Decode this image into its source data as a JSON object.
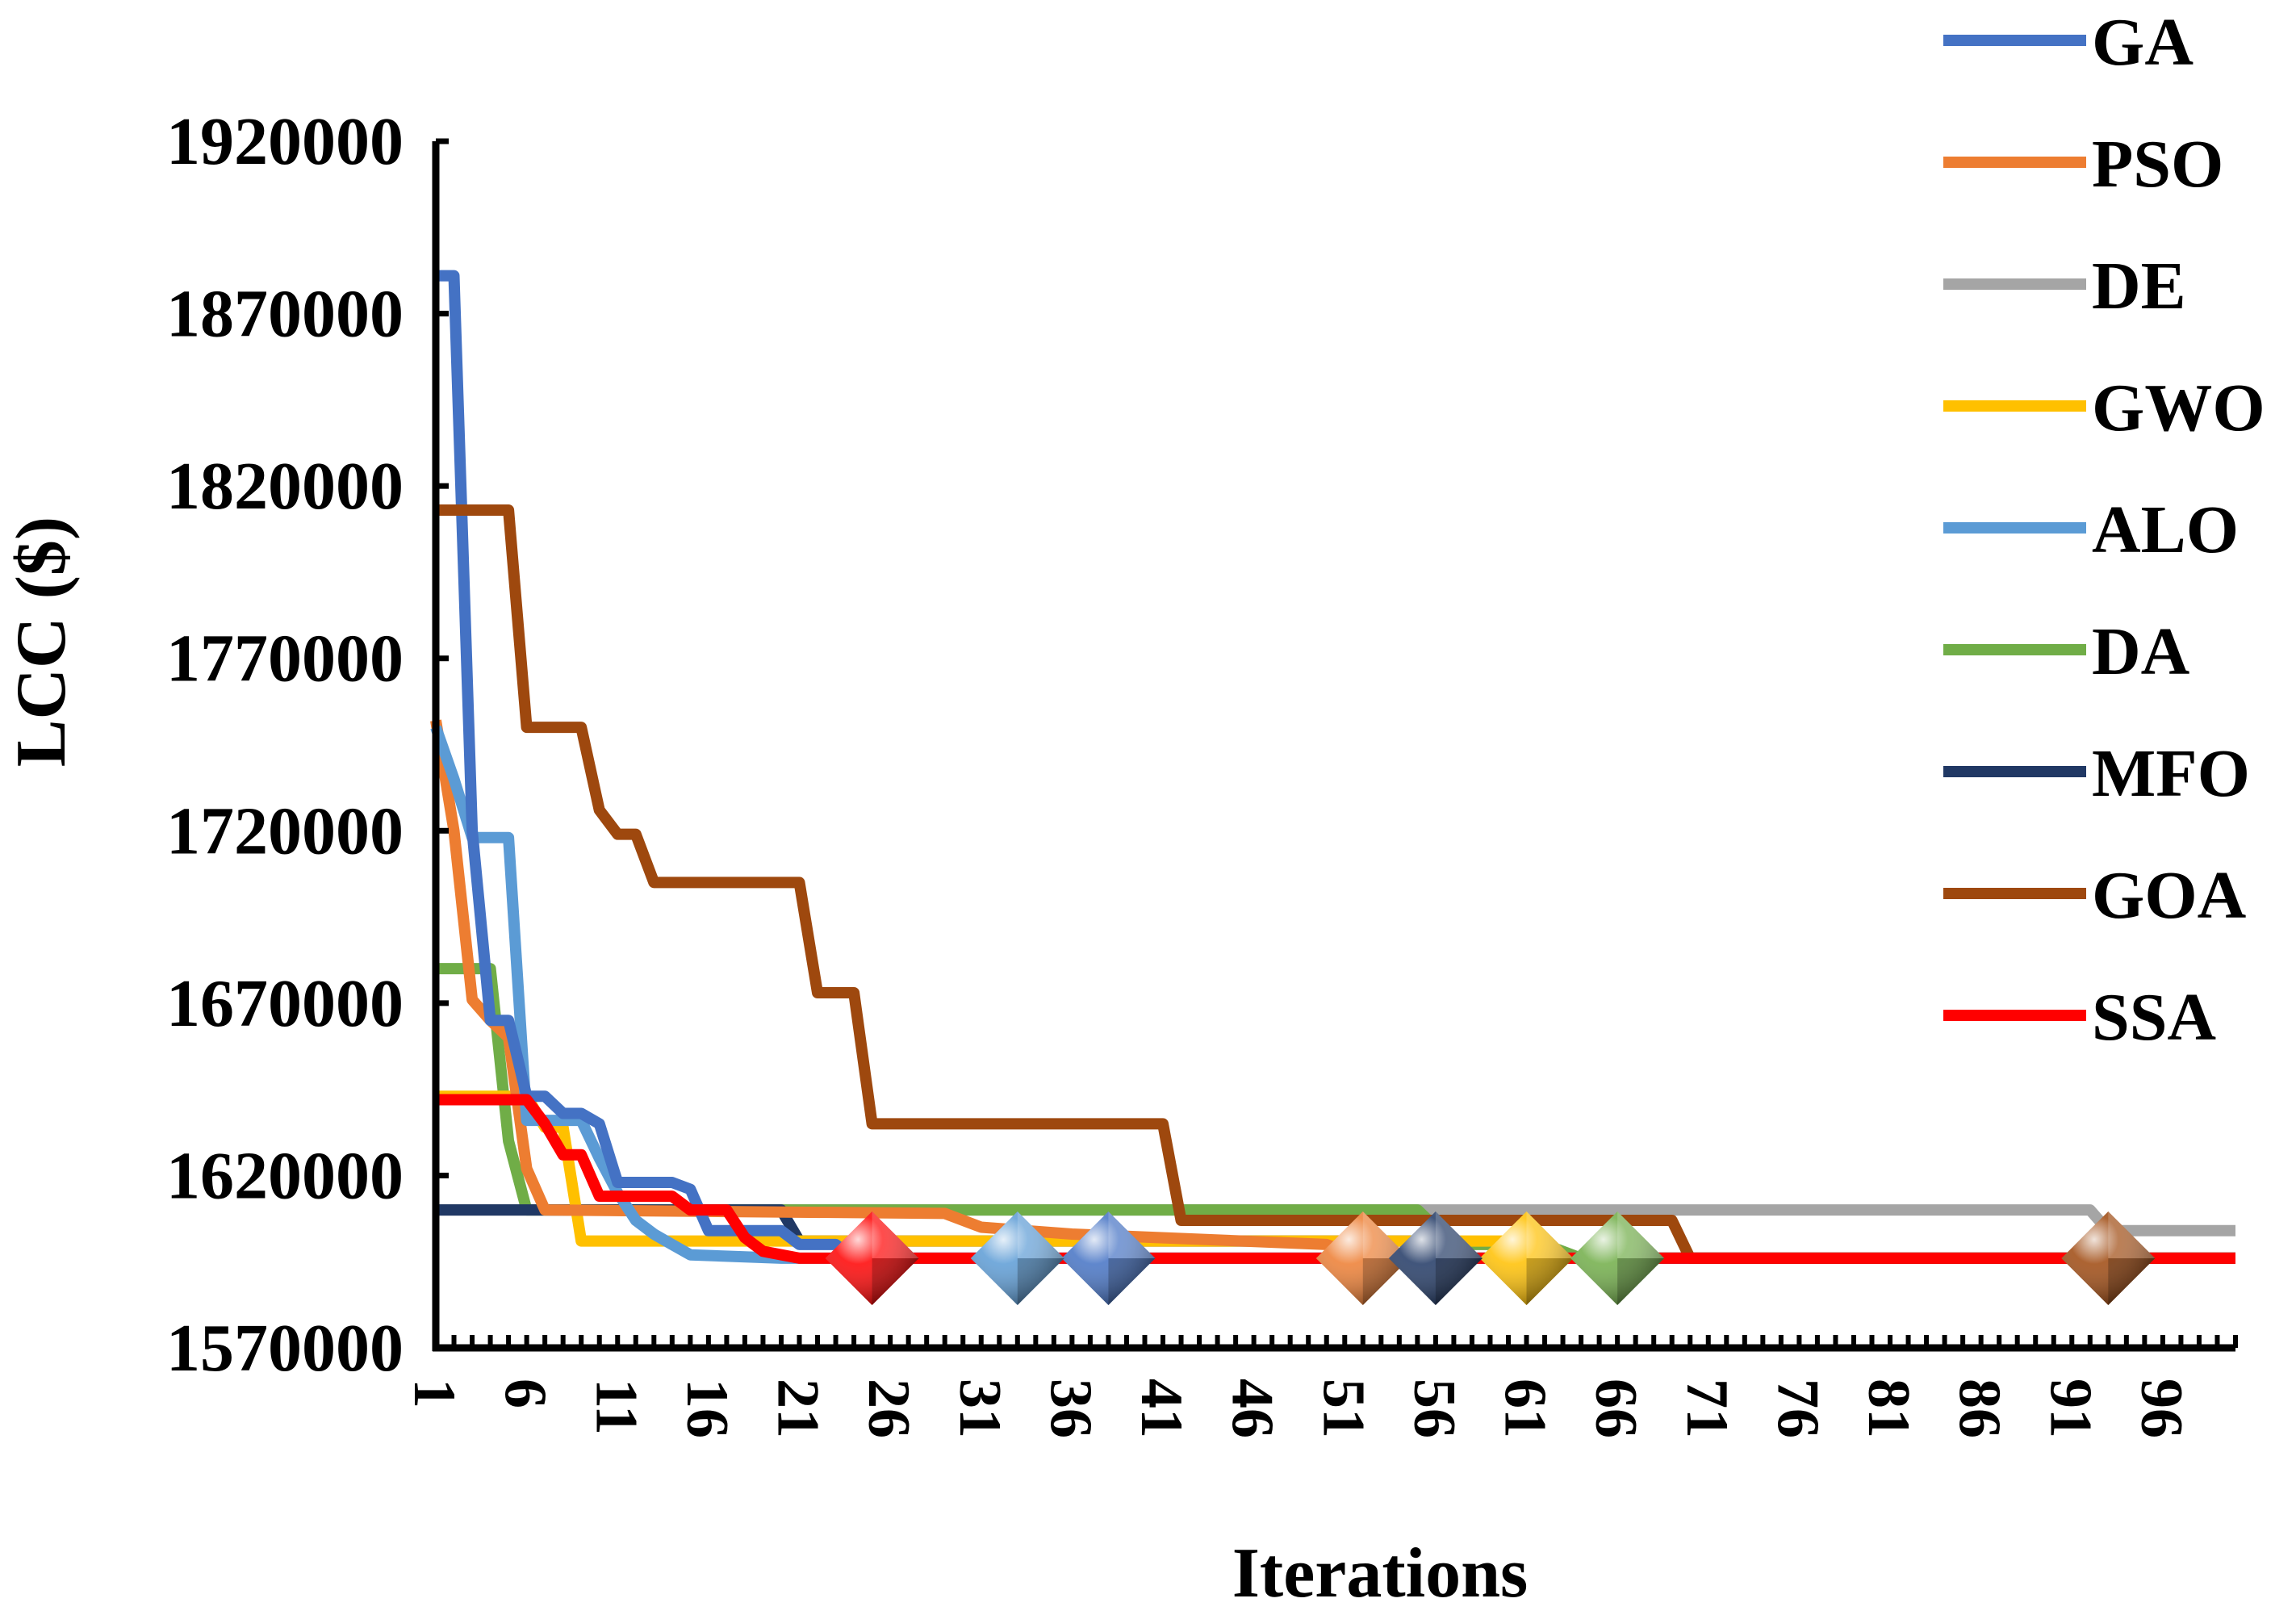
{
  "chart_data": {
    "type": "line",
    "xlabel": "Iterations",
    "ylabel": "LCC ($)",
    "ylim": [
      1570000,
      1920000
    ],
    "xlim": [
      1,
      100
    ],
    "y_ticks": [
      "1570000",
      "1620000",
      "1670000",
      "1720000",
      "1770000",
      "1820000",
      "1870000",
      "1920000"
    ],
    "x_ticks": [
      "1",
      "6",
      "11",
      "16",
      "21",
      "26",
      "31",
      "36",
      "41",
      "46",
      "51",
      "56",
      "61",
      "66",
      "71",
      "76",
      "81",
      "86",
      "91",
      "96"
    ],
    "legend_position": "top-right",
    "series": [
      {
        "name": "GA",
        "color": "#4472C4",
        "points": [
          [
            1,
            1881000
          ],
          [
            2,
            1881000
          ],
          [
            3,
            1720000
          ],
          [
            4,
            1665000
          ],
          [
            5,
            1665000
          ],
          [
            6,
            1643000
          ],
          [
            7,
            1643000
          ],
          [
            8,
            1638000
          ],
          [
            9,
            1638000
          ],
          [
            10,
            1635000
          ],
          [
            11,
            1618000
          ],
          [
            14,
            1618000
          ],
          [
            15,
            1616000
          ],
          [
            16,
            1604000
          ],
          [
            20,
            1604000
          ],
          [
            21,
            1600000
          ],
          [
            23,
            1600000
          ],
          [
            24,
            1596000
          ],
          [
            100,
            1596000
          ]
        ],
        "marker_x": 38
      },
      {
        "name": "PSO",
        "color": "#ED7D31",
        "points": [
          [
            1,
            1752000
          ],
          [
            2,
            1720000
          ],
          [
            3,
            1671000
          ],
          [
            4,
            1665000
          ],
          [
            5,
            1660000
          ],
          [
            6,
            1622000
          ],
          [
            7,
            1610000
          ],
          [
            29,
            1609000
          ],
          [
            31,
            1605000
          ],
          [
            36,
            1603000
          ],
          [
            50,
            1600000
          ],
          [
            52,
            1596000
          ],
          [
            100,
            1596000
          ]
        ],
        "marker_x": 52
      },
      {
        "name": "DE",
        "color": "#A5A5A5",
        "points": [
          [
            1,
            1610000
          ],
          [
            92,
            1610000
          ],
          [
            93,
            1604000
          ],
          [
            100,
            1604000
          ]
        ],
        "marker_x": null
      },
      {
        "name": "GWO",
        "color": "#FFC000",
        "points": [
          [
            1,
            1643000
          ],
          [
            6,
            1643000
          ],
          [
            7,
            1634000
          ],
          [
            8,
            1634000
          ],
          [
            9,
            1601000
          ],
          [
            60,
            1601000
          ],
          [
            61,
            1596000
          ],
          [
            100,
            1596000
          ]
        ],
        "marker_x": 61
      },
      {
        "name": "ALO",
        "color": "#5B9BD5",
        "points": [
          [
            1,
            1750000
          ],
          [
            2,
            1735000
          ],
          [
            3,
            1718000
          ],
          [
            4,
            1718000
          ],
          [
            5,
            1718000
          ],
          [
            6,
            1636000
          ],
          [
            9,
            1636000
          ],
          [
            10,
            1625000
          ],
          [
            11,
            1615000
          ],
          [
            12,
            1607000
          ],
          [
            13,
            1603000
          ],
          [
            14,
            1600000
          ],
          [
            15,
            1597000
          ],
          [
            20,
            1596000
          ],
          [
            100,
            1596000
          ]
        ],
        "marker_x": 33
      },
      {
        "name": "DA",
        "color": "#70AD47",
        "points": [
          [
            1,
            1680000
          ],
          [
            4,
            1680000
          ],
          [
            5,
            1630000
          ],
          [
            6,
            1610000
          ],
          [
            55,
            1610000
          ],
          [
            57,
            1600000
          ],
          [
            62,
            1600000
          ],
          [
            64,
            1596000
          ],
          [
            100,
            1596000
          ]
        ],
        "marker_x": 66
      },
      {
        "name": "MFO",
        "color": "#203864",
        "points": [
          [
            1,
            1610000
          ],
          [
            20,
            1610000
          ],
          [
            21,
            1601000
          ],
          [
            55,
            1601000
          ],
          [
            56,
            1596000
          ],
          [
            100,
            1596000
          ]
        ],
        "marker_x": 56
      },
      {
        "name": "GOA",
        "color": "#9E480E",
        "points": [
          [
            1,
            1813000
          ],
          [
            5,
            1813000
          ],
          [
            6,
            1750000
          ],
          [
            9,
            1750000
          ],
          [
            10,
            1726000
          ],
          [
            11,
            1719000
          ],
          [
            12,
            1719000
          ],
          [
            13,
            1705000
          ],
          [
            21,
            1705000
          ],
          [
            22,
            1673000
          ],
          [
            24,
            1673000
          ],
          [
            25,
            1635000
          ],
          [
            41,
            1635000
          ],
          [
            42,
            1607000
          ],
          [
            69,
            1607000
          ],
          [
            70,
            1596000
          ],
          [
            100,
            1596000
          ]
        ],
        "marker_x": 93
      },
      {
        "name": "SSA",
        "color": "#FF0000",
        "points": [
          [
            1,
            1642000
          ],
          [
            6,
            1642000
          ],
          [
            7,
            1635000
          ],
          [
            8,
            1626000
          ],
          [
            9,
            1626000
          ],
          [
            10,
            1614000
          ],
          [
            14,
            1614000
          ],
          [
            15,
            1610000
          ],
          [
            17,
            1610000
          ],
          [
            18,
            1602000
          ],
          [
            19,
            1598000
          ],
          [
            21,
            1596000
          ],
          [
            100,
            1596000
          ]
        ],
        "marker_x": 25
      }
    ]
  }
}
